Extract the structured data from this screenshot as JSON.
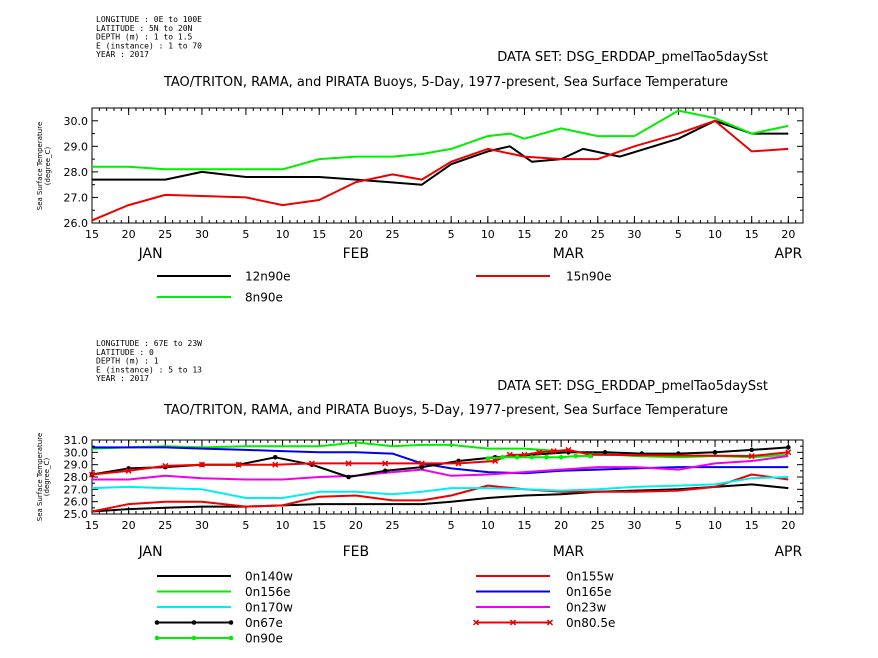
{
  "chart_data": [
    {
      "type": "line",
      "meta": [
        "LONGITUDE : 0E to 100E",
        "LATITUDE : 5N to 20N",
        "DEPTH (m) : 1 to 1.5",
        "E (instance) : 1 to 70",
        "YEAR : 2017"
      ],
      "dataset": "DATA SET: DSG_ERDDAP_pmelTao5daySst",
      "title": "TAO/TRITON, RAMA, and PIRATA Buoys, 5-Day, 1977-present, Sea Surface Temperature",
      "ylabel": [
        "Sea Surface Temperature",
        "(degree_C)"
      ],
      "ylim": [
        26.0,
        30.5
      ],
      "yticks": [
        "26.0",
        "27.0",
        "28.0",
        "29.0",
        "30.0"
      ],
      "xlim": [
        "2017-01-15",
        "2017-04-22"
      ],
      "xticks": [
        {
          "date": "2017-01-15",
          "label": "15"
        },
        {
          "date": "2017-01-20",
          "label": "20"
        },
        {
          "date": "2017-01-25",
          "label": "25"
        },
        {
          "date": "2017-01-30",
          "label": "30"
        },
        {
          "date": "2017-02-05",
          "label": "5"
        },
        {
          "date": "2017-02-10",
          "label": "10"
        },
        {
          "date": "2017-02-15",
          "label": "15"
        },
        {
          "date": "2017-02-20",
          "label": "20"
        },
        {
          "date": "2017-02-25",
          "label": "25"
        },
        {
          "date": "2017-03-05",
          "label": "5"
        },
        {
          "date": "2017-03-10",
          "label": "10"
        },
        {
          "date": "2017-03-15",
          "label": "15"
        },
        {
          "date": "2017-03-20",
          "label": "20"
        },
        {
          "date": "2017-03-25",
          "label": "25"
        },
        {
          "date": "2017-03-30",
          "label": "30"
        },
        {
          "date": "2017-04-05",
          "label": "5"
        },
        {
          "date": "2017-04-10",
          "label": "10"
        },
        {
          "date": "2017-04-15",
          "label": "15"
        },
        {
          "date": "2017-04-20",
          "label": "20"
        }
      ],
      "months": [
        {
          "date": "2017-01-23",
          "label": "JAN"
        },
        {
          "date": "2017-02-20",
          "label": "FEB"
        },
        {
          "date": "2017-03-21",
          "label": "MAR"
        },
        {
          "date": "2017-04-20",
          "label": "APR"
        }
      ],
      "series": [
        {
          "name": "12n90e",
          "color": "#000000",
          "marker": "none",
          "x": [
            "2017-01-15",
            "2017-01-25",
            "2017-01-30",
            "2017-02-05",
            "2017-02-15",
            "2017-02-20",
            "2017-03-01",
            "2017-03-05",
            "2017-03-10",
            "2017-03-13",
            "2017-03-15",
            "2017-03-16",
            "2017-03-20",
            "2017-03-23",
            "2017-03-28",
            "2017-04-05",
            "2017-04-10",
            "2017-04-15",
            "2017-04-20"
          ],
          "values": [
            27.7,
            27.7,
            28.0,
            27.8,
            27.8,
            27.7,
            27.5,
            28.3,
            28.8,
            29.0,
            28.6,
            28.4,
            28.5,
            28.9,
            28.6,
            29.3,
            30.0,
            29.5,
            29.5
          ]
        },
        {
          "name": "15n90e",
          "color": "#ee0000",
          "marker": "none",
          "x": [
            "2017-01-15",
            "2017-01-20",
            "2017-01-25",
            "2017-02-05",
            "2017-02-10",
            "2017-02-15",
            "2017-02-20",
            "2017-02-25",
            "2017-03-01",
            "2017-03-05",
            "2017-03-10",
            "2017-03-15",
            "2017-03-20",
            "2017-03-25",
            "2017-03-30",
            "2017-04-05",
            "2017-04-10",
            "2017-04-15",
            "2017-04-20"
          ],
          "values": [
            26.1,
            26.7,
            27.1,
            27.0,
            26.7,
            26.9,
            27.6,
            27.9,
            27.7,
            28.4,
            28.9,
            28.6,
            28.5,
            28.5,
            29.0,
            29.5,
            30.0,
            28.8,
            28.9
          ]
        },
        {
          "name": "8n90e",
          "color": "#00ee00",
          "marker": "none",
          "x": [
            "2017-01-15",
            "2017-01-20",
            "2017-01-25",
            "2017-02-05",
            "2017-02-10",
            "2017-02-15",
            "2017-02-20",
            "2017-02-25",
            "2017-03-01",
            "2017-03-05",
            "2017-03-10",
            "2017-03-13",
            "2017-03-15",
            "2017-03-20",
            "2017-03-25",
            "2017-03-30",
            "2017-04-05",
            "2017-04-10",
            "2017-04-15",
            "2017-04-20"
          ],
          "values": [
            28.2,
            28.2,
            28.1,
            28.1,
            28.1,
            28.5,
            28.6,
            28.6,
            28.7,
            28.9,
            29.4,
            29.5,
            29.3,
            29.7,
            29.4,
            29.4,
            30.4,
            30.1,
            29.5,
            29.8
          ]
        }
      ]
    },
    {
      "type": "line",
      "meta": [
        "LONGITUDE : 67E to 23W",
        "LATITUDE : 0",
        "DEPTH (m) : 1",
        "E (instance) : 5 to 13",
        "YEAR : 2017"
      ],
      "dataset": "DATA SET: DSG_ERDDAP_pmelTao5daySst",
      "title": "TAO/TRITON, RAMA, and PIRATA Buoys, 5-Day, 1977-present, Sea Surface Temperature",
      "ylabel": [
        "Sea Surface Temperature",
        "(degree_C)"
      ],
      "ylim": [
        25.0,
        31.0
      ],
      "yticks": [
        "25.0",
        "26.0",
        "27.0",
        "28.0",
        "29.0",
        "30.0",
        "31.0"
      ],
      "xlim": [
        "2017-01-15",
        "2017-04-22"
      ],
      "xticks": [
        {
          "date": "2017-01-15",
          "label": "15"
        },
        {
          "date": "2017-01-20",
          "label": "20"
        },
        {
          "date": "2017-01-25",
          "label": "25"
        },
        {
          "date": "2017-01-30",
          "label": "30"
        },
        {
          "date": "2017-02-05",
          "label": "5"
        },
        {
          "date": "2017-02-10",
          "label": "10"
        },
        {
          "date": "2017-02-15",
          "label": "15"
        },
        {
          "date": "2017-02-20",
          "label": "20"
        },
        {
          "date": "2017-02-25",
          "label": "25"
        },
        {
          "date": "2017-03-05",
          "label": "5"
        },
        {
          "date": "2017-03-10",
          "label": "10"
        },
        {
          "date": "2017-03-15",
          "label": "15"
        },
        {
          "date": "2017-03-20",
          "label": "20"
        },
        {
          "date": "2017-03-25",
          "label": "25"
        },
        {
          "date": "2017-03-30",
          "label": "30"
        },
        {
          "date": "2017-04-05",
          "label": "5"
        },
        {
          "date": "2017-04-10",
          "label": "10"
        },
        {
          "date": "2017-04-15",
          "label": "15"
        },
        {
          "date": "2017-04-20",
          "label": "20"
        }
      ],
      "months": [
        {
          "date": "2017-01-23",
          "label": "JAN"
        },
        {
          "date": "2017-02-20",
          "label": "FEB"
        },
        {
          "date": "2017-03-21",
          "label": "MAR"
        },
        {
          "date": "2017-04-20",
          "label": "APR"
        }
      ],
      "series": [
        {
          "name": "0n140w",
          "color": "#000000",
          "marker": "none",
          "x": [
            "2017-01-15",
            "2017-01-20",
            "2017-01-25",
            "2017-01-30",
            "2017-02-05",
            "2017-02-10",
            "2017-02-15",
            "2017-02-20",
            "2017-02-25",
            "2017-03-01",
            "2017-03-05",
            "2017-03-10",
            "2017-03-15",
            "2017-03-20",
            "2017-03-25",
            "2017-03-30",
            "2017-04-05",
            "2017-04-10",
            "2017-04-15",
            "2017-04-20"
          ],
          "values": [
            25.2,
            25.4,
            25.5,
            25.6,
            25.6,
            25.7,
            25.8,
            25.8,
            25.8,
            25.8,
            26.0,
            26.3,
            26.5,
            26.6,
            26.8,
            26.9,
            27.0,
            27.2,
            27.4,
            27.1
          ]
        },
        {
          "name": "0n155w",
          "color": "#ee0000",
          "marker": "none",
          "x": [
            "2017-01-15",
            "2017-01-20",
            "2017-01-25",
            "2017-01-30",
            "2017-02-05",
            "2017-02-10",
            "2017-02-15",
            "2017-02-20",
            "2017-02-25",
            "2017-03-01",
            "2017-03-05",
            "2017-03-10",
            "2017-03-15",
            "2017-03-20",
            "2017-03-25",
            "2017-03-30",
            "2017-04-05",
            "2017-04-10",
            "2017-04-15",
            "2017-04-20"
          ],
          "values": [
            25.2,
            25.8,
            26.0,
            26.0,
            25.6,
            25.7,
            26.4,
            26.5,
            26.1,
            26.1,
            26.5,
            27.3,
            27.0,
            26.8,
            26.8,
            26.8,
            26.9,
            27.2,
            28.2,
            27.8
          ]
        },
        {
          "name": "0n156e",
          "color": "#00ee00",
          "marker": "none",
          "x": [
            "2017-01-15",
            "2017-01-20",
            "2017-01-25",
            "2017-01-30",
            "2017-02-05",
            "2017-02-10",
            "2017-02-15",
            "2017-02-20",
            "2017-02-25",
            "2017-03-01",
            "2017-03-05",
            "2017-03-10",
            "2017-03-15",
            "2017-03-20",
            "2017-03-25",
            "2017-03-30",
            "2017-04-05",
            "2017-04-10",
            "2017-04-15",
            "2017-04-20"
          ],
          "values": [
            30.3,
            30.4,
            30.5,
            30.4,
            30.5,
            30.5,
            30.5,
            30.8,
            30.5,
            30.6,
            30.6,
            30.3,
            30.3,
            30.1,
            29.9,
            29.7,
            29.6,
            29.7,
            29.6,
            29.8
          ]
        },
        {
          "name": "0n165e",
          "color": "#0000ee",
          "marker": "none",
          "x": [
            "2017-01-15",
            "2017-01-20",
            "2017-01-25",
            "2017-01-30",
            "2017-02-05",
            "2017-02-10",
            "2017-02-15",
            "2017-02-20",
            "2017-02-25",
            "2017-03-01",
            "2017-03-05",
            "2017-03-10",
            "2017-03-15",
            "2017-03-20",
            "2017-03-25",
            "2017-03-30",
            "2017-04-05",
            "2017-04-10",
            "2017-04-15",
            "2017-04-20"
          ],
          "values": [
            30.4,
            30.4,
            30.4,
            30.3,
            30.2,
            30.1,
            30.0,
            30.0,
            29.9,
            29.1,
            28.7,
            28.4,
            28.3,
            28.5,
            28.6,
            28.7,
            28.8,
            28.8,
            28.8,
            28.8
          ]
        },
        {
          "name": "0n170w",
          "color": "#00eeee",
          "marker": "none",
          "x": [
            "2017-01-15",
            "2017-01-20",
            "2017-01-25",
            "2017-01-30",
            "2017-02-05",
            "2017-02-10",
            "2017-02-15",
            "2017-02-20",
            "2017-02-25",
            "2017-03-01",
            "2017-03-05",
            "2017-03-10",
            "2017-03-15",
            "2017-03-20",
            "2017-03-25",
            "2017-03-30",
            "2017-04-05",
            "2017-04-10",
            "2017-04-15",
            "2017-04-20"
          ],
          "values": [
            27.1,
            27.2,
            27.1,
            27.0,
            26.3,
            26.3,
            26.8,
            26.8,
            26.6,
            26.8,
            27.1,
            27.1,
            27.0,
            26.9,
            27.0,
            27.2,
            27.3,
            27.4,
            27.9,
            28.0
          ]
        },
        {
          "name": "0n23w",
          "color": "#ee00ee",
          "marker": "none",
          "x": [
            "2017-01-15",
            "2017-01-20",
            "2017-01-25",
            "2017-01-30",
            "2017-02-05",
            "2017-02-10",
            "2017-02-15",
            "2017-02-20",
            "2017-02-25",
            "2017-03-01",
            "2017-03-05",
            "2017-03-10",
            "2017-03-15",
            "2017-03-20",
            "2017-03-25",
            "2017-03-30",
            "2017-04-05",
            "2017-04-10",
            "2017-04-15",
            "2017-04-20"
          ],
          "values": [
            27.8,
            27.8,
            28.1,
            27.9,
            27.8,
            27.8,
            28.0,
            28.1,
            28.4,
            28.6,
            28.1,
            28.2,
            28.4,
            28.6,
            28.8,
            28.8,
            28.6,
            29.1,
            29.3,
            29.7
          ]
        },
        {
          "name": "0n67e",
          "color": "#000000",
          "marker": "dot",
          "x": [
            "2017-01-15",
            "2017-01-20",
            "2017-01-25",
            "2017-01-30",
            "2017-02-04",
            "2017-02-09",
            "2017-02-14",
            "2017-02-19",
            "2017-02-24",
            "2017-03-01",
            "2017-03-06",
            "2017-03-11",
            "2017-03-16",
            "2017-03-21",
            "2017-03-26",
            "2017-03-31",
            "2017-04-05",
            "2017-04-10",
            "2017-04-15",
            "2017-04-20"
          ],
          "values": [
            28.2,
            28.7,
            28.8,
            29.0,
            29.0,
            29.6,
            29.0,
            28.0,
            28.5,
            28.8,
            29.3,
            29.6,
            29.8,
            30.0,
            30.0,
            29.9,
            29.9,
            30.0,
            30.2,
            30.4
          ]
        },
        {
          "name": "0n80.5e",
          "color": "#ee0000",
          "marker": "x",
          "x": [
            "2017-01-15",
            "2017-01-20",
            "2017-01-25",
            "2017-01-30",
            "2017-02-04",
            "2017-02-09",
            "2017-02-14",
            "2017-02-19",
            "2017-02-24",
            "2017-03-01",
            "2017-03-06",
            "2017-03-11",
            "2017-03-13",
            "2017-03-15",
            "2017-03-17",
            "2017-03-19",
            "2017-03-21",
            "2017-03-24",
            "2017-04-15",
            "2017-04-20"
          ],
          "values": [
            28.2,
            28.5,
            28.9,
            29.0,
            29.0,
            29.0,
            29.1,
            29.1,
            29.1,
            29.1,
            29.1,
            29.3,
            29.8,
            29.8,
            30.0,
            30.1,
            30.2,
            29.8,
            29.7,
            30.0
          ]
        },
        {
          "name": "0n90e",
          "color": "#00ee00",
          "marker": "dot",
          "x": [
            "2017-03-10",
            "2017-03-12",
            "2017-03-14",
            "2017-03-16",
            "2017-03-18",
            "2017-03-20",
            "2017-03-22",
            "2017-03-24"
          ],
          "values": [
            29.5,
            29.6,
            29.6,
            29.6,
            29.6,
            29.6,
            29.7,
            29.7
          ]
        }
      ]
    }
  ]
}
